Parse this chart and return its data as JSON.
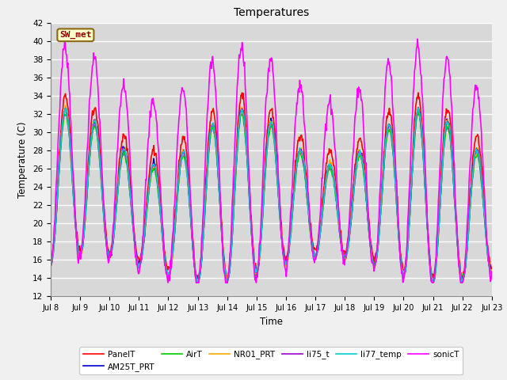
{
  "title": "Temperatures",
  "xlabel": "Time",
  "ylabel": "Temperature (C)",
  "ylim": [
    12,
    42
  ],
  "yticks": [
    12,
    14,
    16,
    18,
    20,
    22,
    24,
    26,
    28,
    30,
    32,
    34,
    36,
    38,
    40,
    42
  ],
  "xtick_labels": [
    "Jul 8",
    "Jul 9",
    "Jul 10",
    "Jul 11",
    "Jul 12",
    "Jul 13",
    "Jul 14",
    "Jul 15",
    "Jul 16",
    "Jul 17",
    "Jul 18",
    "Jul 19",
    "Jul 20",
    "Jul 21",
    "Jul 22",
    "Jul 23"
  ],
  "annotation_text": "SW_met",
  "annotation_bg": "#ffffcc",
  "annotation_fg": "#8b0000",
  "annotation_border": "#8b6914",
  "series_order": [
    "PanelT",
    "AM25T_PRT",
    "AirT",
    "NR01_PRT",
    "li75_t",
    "li77_temp",
    "sonicT"
  ],
  "series_colors": {
    "PanelT": "#ff0000",
    "AM25T_PRT": "#0000cc",
    "AirT": "#00cc00",
    "NR01_PRT": "#ffaa00",
    "li75_t": "#9900cc",
    "li77_temp": "#00cccc",
    "sonicT": "#ff00ff"
  },
  "lw": 1.2,
  "bg_color": "#d8d8d8",
  "fig_bg": "#f0f0f0",
  "grid_color": "#ffffff",
  "n_points": 720,
  "days": 15
}
